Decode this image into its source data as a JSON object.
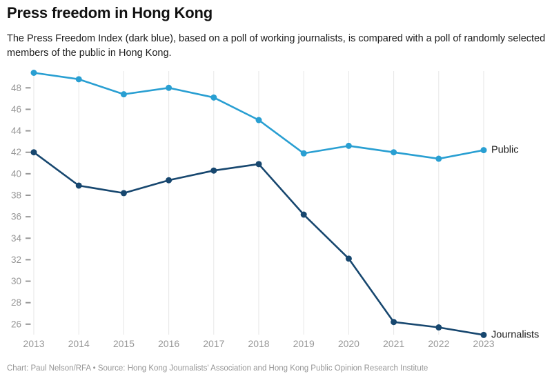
{
  "header": {
    "title": "Press freedom in Hong Kong",
    "subtitle": "The Press Freedom Index (dark blue), based on a poll of working journalists, is compared with a poll of randomly selected members of the public in Hong Kong."
  },
  "footer": {
    "credit": "Chart: Paul Nelson/RFA • Source: Hong Kong Journalists' Association and Hong Kong Public Opinion Research Institute"
  },
  "chart_data": {
    "type": "line",
    "title": "Press freedom in Hong Kong",
    "xlabel": "",
    "ylabel": "",
    "x": [
      2013,
      2014,
      2015,
      2016,
      2017,
      2018,
      2019,
      2020,
      2021,
      2022,
      2023
    ],
    "series": [
      {
        "name": "Public",
        "color": "#299fd2",
        "values": [
          49.4,
          48.8,
          47.4,
          48.0,
          47.1,
          45.0,
          41.9,
          42.6,
          42.0,
          41.4,
          42.2
        ]
      },
      {
        "name": "Journalists",
        "color": "#17476f",
        "values": [
          42.0,
          38.9,
          38.2,
          39.4,
          40.3,
          40.9,
          36.2,
          32.1,
          26.2,
          25.7,
          25.0
        ]
      }
    ],
    "y_ticks": [
      26,
      28,
      30,
      32,
      34,
      36,
      38,
      40,
      42,
      44,
      46,
      48
    ],
    "ylim": [
      24.6,
      49.9
    ],
    "grid": "vertical-only",
    "legend_position": "inline-right",
    "style": {
      "grid_color": "#e6e6e6",
      "axis_text_color": "#979797",
      "series_label_color": "#1a1a1a"
    }
  }
}
